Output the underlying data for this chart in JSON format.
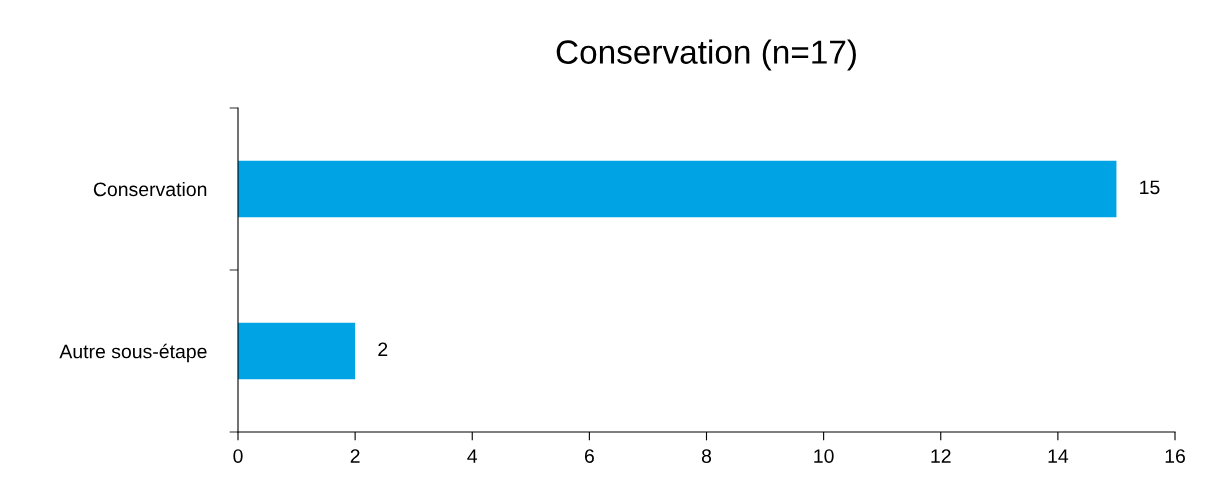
{
  "chart_data": {
    "type": "bar",
    "orientation": "horizontal",
    "title": "Conservation (n=17)",
    "categories": [
      "Conservation",
      "Autre sous-étape"
    ],
    "values": [
      15,
      2
    ],
    "color": "#00a4e4",
    "xlim": [
      0,
      16
    ],
    "xticks": [
      0,
      2,
      4,
      6,
      8,
      10,
      12,
      14,
      16
    ],
    "data_labels": true,
    "grid": false,
    "legend": false
  }
}
